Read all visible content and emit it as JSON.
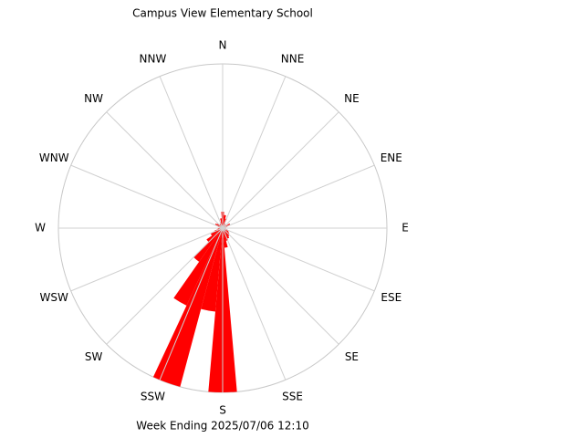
{
  "chart_data": {
    "type": "rose",
    "title": "Campus View Elementary School",
    "subtitle": "Week Ending 2025/07/06 12:10",
    "direction_labels": [
      "N",
      "NNE",
      "NE",
      "ENE",
      "E",
      "ESE",
      "SE",
      "SSE",
      "S",
      "SSW",
      "SW",
      "WSW",
      "W",
      "WNW",
      "NW",
      "NNW"
    ],
    "values": [
      10,
      8,
      6,
      3,
      2,
      2,
      5,
      3,
      2,
      2,
      2,
      3,
      4,
      5,
      6,
      7,
      8,
      12,
      100,
      51,
      100,
      52,
      25,
      12,
      8,
      5,
      3,
      2,
      2,
      3,
      5,
      4,
      3,
      3,
      4,
      6
    ],
    "color": "#ff0000",
    "rlim": [
      0,
      100
    ]
  }
}
